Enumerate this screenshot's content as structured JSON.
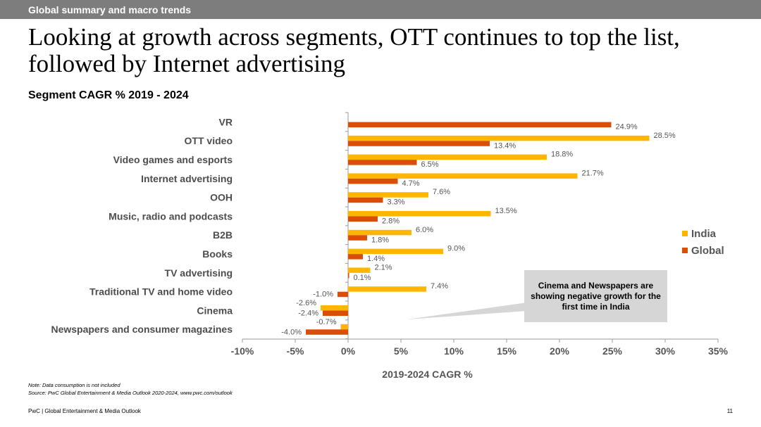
{
  "section_bar": "Global summary and macro trends",
  "headline": "Looking at growth across segments, OTT continues to top the list, followed by Internet advertising",
  "colors": {
    "india": "#FFB600",
    "global": "#DB4E07",
    "section_bar": "#7d7d7d",
    "callout_bg": "#d6d6d6"
  },
  "chart_data": {
    "type": "bar",
    "orientation": "horizontal",
    "title": "Segment CAGR % 2019 - 2024",
    "xlabel": "2019-2024 CAGR %",
    "ylabel": "",
    "xlim": [
      -10,
      35
    ],
    "xticks": [
      -10,
      -5,
      0,
      5,
      10,
      15,
      20,
      25,
      30,
      35
    ],
    "xtick_labels": [
      "-10%",
      "-5%",
      "0%",
      "5%",
      "10%",
      "15%",
      "20%",
      "25%",
      "30%",
      "35%"
    ],
    "legend_position": "right",
    "categories": [
      "VR",
      "OTT video",
      "Video games and esports",
      "Internet advertising",
      "OOH",
      "Music, radio and podcasts",
      "B2B",
      "Books",
      "TV advertising",
      "Traditional TV and home video",
      "Cinema",
      "Newspapers and consumer magazines"
    ],
    "series": [
      {
        "name": "India",
        "color": "#FFB600",
        "values": [
          null,
          28.5,
          18.8,
          21.7,
          7.6,
          13.5,
          6.0,
          9.0,
          2.1,
          7.4,
          -2.6,
          -0.7
        ],
        "labels": [
          null,
          "28.5%",
          "18.8%",
          "21.7%",
          "7.6%",
          "13.5%",
          "6.0%",
          "9.0%",
          "2.1%",
          "7.4%",
          "-2.6%",
          "-0.7%"
        ]
      },
      {
        "name": "Global",
        "color": "#DB4E07",
        "values": [
          24.9,
          13.4,
          6.5,
          4.7,
          3.3,
          2.8,
          1.8,
          1.4,
          0.1,
          -1.0,
          -2.4,
          -4.0
        ],
        "labels": [
          "24.9%",
          "13.4%",
          "6.5%",
          "4.7%",
          "3.3%",
          "2.8%",
          "1.8%",
          "1.4%",
          "0.1%",
          "-1.0%",
          "-2.4%",
          "-4.0%"
        ]
      }
    ],
    "annotation": "Cinema and Newspapers are showing negative growth for the first time in India"
  },
  "notes": {
    "note": "Note: Data consumption is not included",
    "source": "Source: PwC Global Entertainment & Media Outlook 2020-2024, www.pwc.com/outlook"
  },
  "footer": {
    "left": "PwC | Global Entertainment & Media Outlook",
    "page_number": "11"
  }
}
